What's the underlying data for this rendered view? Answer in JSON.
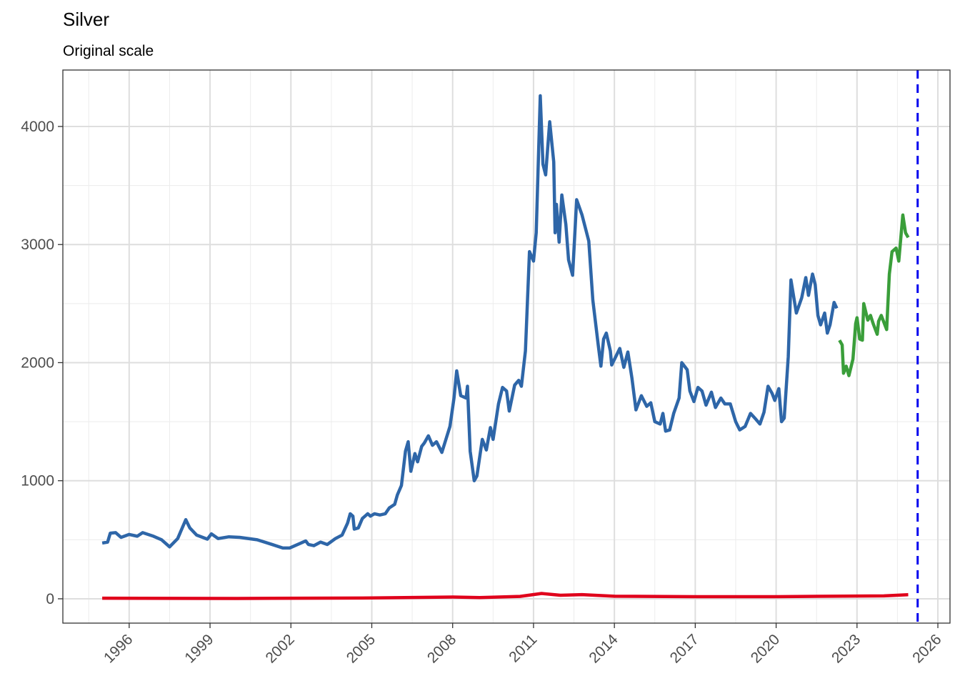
{
  "chart_data": {
    "type": "line",
    "title": "Silver",
    "subtitle": "Original scale",
    "xlim": [
      1993.54,
      2026.45
    ],
    "xticks": [
      1996,
      1999,
      2002,
      2005,
      2008,
      2011,
      2014,
      2017,
      2020,
      2023,
      2026
    ],
    "ylim": [
      -206,
      4478
    ],
    "yticks": [
      0,
      1000,
      2000,
      3000,
      4000
    ],
    "grid": true,
    "vline": {
      "x": 2025.25,
      "color": "#0000ee"
    },
    "series": [
      {
        "color": "#2e66a8",
        "x": [
          1995.0,
          1995.2,
          1995.3,
          1995.5,
          1995.7,
          1996.0,
          1996.3,
          1996.5,
          1996.9,
          1997.2,
          1997.5,
          1997.8,
          1998.1,
          1998.25,
          1998.5,
          1998.9,
          1999.05,
          1999.3,
          1999.7,
          2000.1,
          2000.75,
          2001.3,
          2001.7,
          2001.95,
          2002.35,
          2002.55,
          2002.65,
          2002.85,
          2003.1,
          2003.35,
          2003.65,
          2003.9,
          2004.1,
          2004.2,
          2004.3,
          2004.35,
          2004.5,
          2004.65,
          2004.85,
          2004.95,
          2005.1,
          2005.3,
          2005.5,
          2005.65,
          2005.85,
          2005.95,
          2006.1,
          2006.25,
          2006.35,
          2006.45,
          2006.6,
          2006.7,
          2006.85,
          2006.95,
          2007.1,
          2007.25,
          2007.4,
          2007.6,
          2007.75,
          2007.9,
          2008.05,
          2008.15,
          2008.3,
          2008.5,
          2008.55,
          2008.65,
          2008.8,
          2008.9,
          2009.1,
          2009.25,
          2009.4,
          2009.5,
          2009.7,
          2009.85,
          2010.0,
          2010.1,
          2010.3,
          2010.45,
          2010.55,
          2010.7,
          2010.85,
          2011.0,
          2011.1,
          2011.25,
          2011.35,
          2011.45,
          2011.6,
          2011.75,
          2011.8,
          2011.85,
          2011.95,
          2012.05,
          2012.2,
          2012.3,
          2012.45,
          2012.6,
          2012.8,
          2013.05,
          2013.2,
          2013.4,
          2013.5,
          2013.6,
          2013.7,
          2013.85,
          2013.9,
          2014.05,
          2014.2,
          2014.35,
          2014.5,
          2014.65,
          2014.8,
          2015.0,
          2015.2,
          2015.35,
          2015.5,
          2015.7,
          2015.8,
          2015.9,
          2016.05,
          2016.2,
          2016.4,
          2016.5,
          2016.7,
          2016.8,
          2016.95,
          2017.1,
          2017.25,
          2017.4,
          2017.6,
          2017.75,
          2017.95,
          2018.1,
          2018.3,
          2018.5,
          2018.65,
          2018.85,
          2019.05,
          2019.25,
          2019.4,
          2019.55,
          2019.7,
          2019.85,
          2019.95,
          2020.1,
          2020.2,
          2020.3,
          2020.45,
          2020.55,
          2020.75,
          2020.95,
          2021.1,
          2021.2,
          2021.35,
          2021.45,
          2021.55,
          2021.65,
          2021.8,
          2021.9,
          2022.0,
          2022.15,
          2022.25
        ],
        "values": [
          472,
          480,
          556,
          560,
          520,
          545,
          530,
          560,
          530,
          500,
          440,
          510,
          670,
          600,
          540,
          505,
          550,
          510,
          525,
          520,
          500,
          460,
          430,
          430,
          470,
          490,
          460,
          450,
          480,
          460,
          510,
          540,
          640,
          720,
          700,
          590,
          600,
          680,
          720,
          700,
          720,
          710,
          720,
          770,
          800,
          880,
          960,
          1250,
          1330,
          1080,
          1230,
          1160,
          1290,
          1320,
          1380,
          1300,
          1330,
          1240,
          1350,
          1460,
          1700,
          1930,
          1720,
          1700,
          1800,
          1250,
          1000,
          1040,
          1350,
          1260,
          1450,
          1350,
          1650,
          1790,
          1760,
          1590,
          1810,
          1850,
          1800,
          2100,
          2940,
          2860,
          3100,
          4260,
          3680,
          3590,
          4040,
          3700,
          3100,
          3340,
          3020,
          3420,
          3170,
          2870,
          2740,
          3380,
          3250,
          3030,
          2530,
          2150,
          1970,
          2200,
          2250,
          2100,
          1980,
          2050,
          2120,
          1960,
          2090,
          1870,
          1600,
          1720,
          1630,
          1660,
          1500,
          1480,
          1570,
          1420,
          1430,
          1570,
          1700,
          2000,
          1940,
          1760,
          1670,
          1790,
          1760,
          1640,
          1750,
          1620,
          1700,
          1650,
          1650,
          1500,
          1430,
          1460,
          1570,
          1520,
          1480,
          1580,
          1800,
          1740,
          1680,
          1780,
          1500,
          1530,
          2050,
          2700,
          2420,
          2550,
          2720,
          2570,
          2750,
          2660,
          2400,
          2320,
          2420,
          2250,
          2320,
          2510,
          2460
        ]
      },
      {
        "color": "#3a9e3a",
        "x": [
          2022.35,
          2022.45,
          2022.5,
          2022.6,
          2022.7,
          2022.85,
          2022.95,
          2023.0,
          2023.1,
          2023.2,
          2023.25,
          2023.4,
          2023.5,
          2023.6,
          2023.75,
          2023.8,
          2023.9,
          2024.1,
          2024.2,
          2024.3,
          2024.45,
          2024.55,
          2024.7,
          2024.8,
          2024.9
        ],
        "values": [
          2190,
          2150,
          1910,
          1970,
          1890,
          2030,
          2330,
          2380,
          2200,
          2190,
          2500,
          2360,
          2400,
          2330,
          2240,
          2350,
          2400,
          2280,
          2750,
          2940,
          2970,
          2860,
          3250,
          3100,
          3060
        ]
      },
      {
        "color": "#e0001b",
        "x": [
          1995.0,
          2000.0,
          2005.0,
          2008.0,
          2009.0,
          2010.5,
          2011.3,
          2012.0,
          2012.8,
          2014.0,
          2017.0,
          2020.0,
          2022.0,
          2024.0,
          2024.9
        ],
        "values": [
          5,
          3,
          7,
          15,
          10,
          20,
          45,
          30,
          35,
          22,
          18,
          18,
          22,
          25,
          35
        ]
      }
    ]
  }
}
